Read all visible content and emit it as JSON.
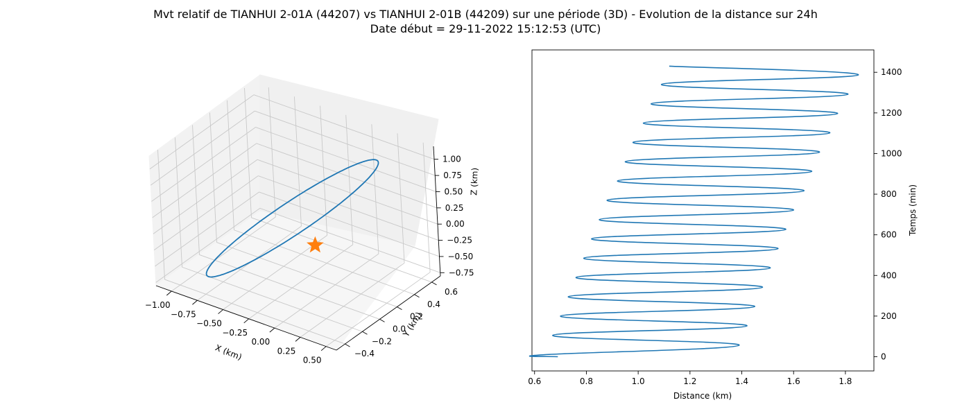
{
  "figure": {
    "title_line1": "Mvt relatif de TIANHUI 2-01A (44207) vs TIANHUI 2-01B (44209) sur une période (3D) - Evolution de la distance sur 24h",
    "title_line2": "Date début = 29-11-2022 15:12:53 (UTC)"
  },
  "colors": {
    "series": "#1f77b4",
    "marker": "#ff7f0e"
  },
  "chart_data": [
    {
      "type": "line3d",
      "xlabel": "X (km)",
      "ylabel": "Y (km)",
      "zlabel": "Z (km)",
      "xlim": [
        -1.15,
        0.6
      ],
      "ylim": [
        -0.5,
        0.7
      ],
      "zlim": [
        -0.8,
        1.2
      ],
      "xticks": [
        "−1.00",
        "−0.75",
        "−0.50",
        "−0.25",
        "0.00",
        "0.25",
        "0.50"
      ],
      "yticks": [
        "−0.4",
        "−0.2",
        "0.0",
        "0.2",
        "0.4",
        "0.6"
      ],
      "zticks": [
        "−0.75",
        "−0.50",
        "−0.25",
        "0.00",
        "0.25",
        "0.50",
        "0.75",
        "1.00"
      ],
      "xtick_values": [
        -1.0,
        -0.75,
        -0.5,
        -0.25,
        0.0,
        0.25,
        0.5
      ],
      "ytick_values": [
        -0.4,
        -0.2,
        0.0,
        0.2,
        0.4,
        0.6
      ],
      "ztick_values": [
        -0.75,
        -0.5,
        -0.25,
        0.0,
        0.25,
        0.5,
        0.75,
        1.0
      ],
      "grid": true,
      "orbit": {
        "a": 0.6,
        "b": 0.3,
        "c": 0.15,
        "z_amp": 0.95,
        "z_off": 0.15
      },
      "marker": {
        "shape": "star",
        "x": 0.0,
        "y": 0.0,
        "z": 0.0
      }
    },
    {
      "type": "line",
      "xlabel": "Distance (km)",
      "ylabel": "Temps (min)",
      "xlim": [
        0.59,
        1.91
      ],
      "ylim": [
        -70,
        1510
      ],
      "xticks": [
        "0.6",
        "0.8",
        "1.0",
        "1.2",
        "1.4",
        "1.6",
        "1.8"
      ],
      "yticks": [
        "0",
        "200",
        "400",
        "600",
        "800",
        "1000",
        "1200",
        "1400"
      ],
      "xtick_values": [
        0.6,
        0.8,
        1.0,
        1.2,
        1.4,
        1.6,
        1.8
      ],
      "ytick_values": [
        0,
        200,
        400,
        600,
        800,
        1000,
        1200,
        1400
      ],
      "y_axis_side": "right",
      "grid": false,
      "series": [
        {
          "x": [
            0.69,
            0.64,
            1.39,
            0.67,
            1.42,
            0.7,
            1.45,
            0.73,
            1.48,
            0.76,
            1.51,
            0.79,
            1.54,
            0.82,
            1.57,
            0.85,
            1.6,
            0.88,
            1.64,
            0.92,
            1.67,
            0.95,
            1.7,
            0.98,
            1.74,
            1.02,
            1.77,
            1.05,
            1.81,
            1.09,
            1.85,
            1.12
          ],
          "y": [
            0,
            10,
            57,
            105,
            152,
            200,
            247,
            295,
            342,
            390,
            437,
            485,
            532,
            580,
            627,
            675,
            722,
            770,
            817,
            865,
            912,
            960,
            1007,
            1055,
            1102,
            1150,
            1197,
            1245,
            1292,
            1340,
            1387,
            1430
          ]
        }
      ]
    }
  ]
}
